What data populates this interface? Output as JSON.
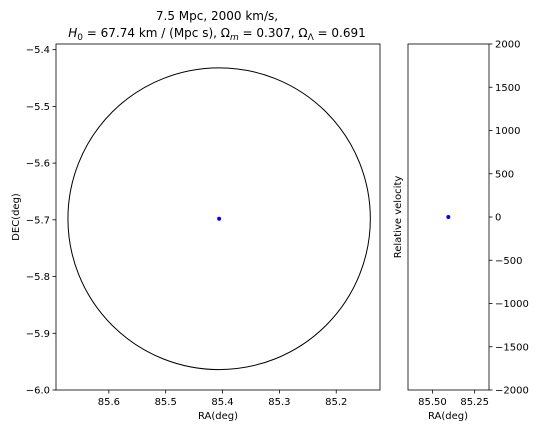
{
  "title_line1": "7.5 Mpc, 2000 km/s,",
  "title_line2_parts": [
    {
      "t": "H",
      "s": "i"
    },
    {
      "t": "0",
      "s": "sub"
    },
    {
      "t": " = 67.74 km / (Mpc s), ",
      "s": "n"
    },
    {
      "t": "Ω",
      "s": "n"
    },
    {
      "t": "m",
      "s": "isub"
    },
    {
      "t": " = 0.307, ",
      "s": "n"
    },
    {
      "t": "Ω",
      "s": "n"
    },
    {
      "t": "Λ",
      "s": "sub"
    },
    {
      "t": " = 0.691",
      "s": "n"
    }
  ],
  "chart_data": [
    {
      "type": "scatter",
      "xlabel": "RA(deg)",
      "ylabel": "DEC(deg)",
      "x_inverted": true,
      "xlim": [
        85.693,
        85.123
      ],
      "ylim": [
        -6.0,
        -5.39
      ],
      "xticks": [
        85.6,
        85.5,
        85.4,
        85.3,
        85.2
      ],
      "xtick_labels": [
        "85.6",
        "85.5",
        "85.4",
        "85.3",
        "85.2"
      ],
      "yticks": [
        -6.0,
        -5.9,
        -5.8,
        -5.7,
        -5.6,
        -5.5,
        -5.4
      ],
      "ytick_labels": [
        "−6.0",
        "−5.9",
        "−5.8",
        "−5.7",
        "−5.6",
        "−5.5",
        "−5.4"
      ],
      "points": [
        {
          "x": 85.406,
          "y": -5.698,
          "color": "#0000ff"
        }
      ],
      "circle": {
        "center_x": 85.406,
        "center_y": -5.698,
        "radius_deg": 0.266,
        "color": "#000000"
      }
    },
    {
      "type": "scatter",
      "xlabel": "RA(deg)",
      "ylabel": "Relative velocity",
      "x_inverted": true,
      "xlim": [
        85.645,
        85.165
      ],
      "ylim": [
        -2000,
        2000
      ],
      "xticks": [
        85.5,
        85.25
      ],
      "xtick_labels": [
        "85.50",
        "85.25"
      ],
      "yticks": [
        -2000,
        -1500,
        -1000,
        -500,
        0,
        500,
        1000,
        1500,
        2000
      ],
      "ytick_labels": [
        "−2000",
        "−1500",
        "−1000",
        "−500",
        "0",
        "500",
        "1000",
        "1500",
        "2000"
      ],
      "points": [
        {
          "x": 85.406,
          "y": 0,
          "color": "#0000ff"
        }
      ]
    }
  ]
}
